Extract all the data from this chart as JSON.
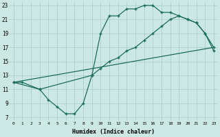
{
  "xlabel": "Humidex (Indice chaleur)",
  "bg_color": "#cce8e4",
  "grid_color": "#aacfcb",
  "line_color": "#1a6b5a",
  "xlim": [
    -0.5,
    23.5
  ],
  "ylim": [
    6.5,
    23.5
  ],
  "xticks": [
    0,
    1,
    2,
    3,
    4,
    5,
    6,
    7,
    8,
    9,
    10,
    11,
    12,
    13,
    14,
    15,
    16,
    17,
    18,
    19,
    20,
    21,
    22,
    23
  ],
  "yticks": [
    7,
    9,
    11,
    13,
    15,
    17,
    19,
    21,
    23
  ],
  "line1_x": [
    0,
    1,
    3,
    4,
    5,
    6,
    7,
    8,
    9,
    10,
    11,
    12,
    13,
    14,
    15,
    16,
    17,
    18,
    19,
    20,
    21,
    22,
    23
  ],
  "line1_y": [
    12,
    12,
    11,
    9.5,
    8.5,
    7.5,
    7.5,
    9,
    13,
    19,
    21.5,
    21.5,
    22.5,
    22.5,
    23,
    23,
    22,
    22,
    21.5,
    21,
    20.5,
    19,
    16.5
  ],
  "line2_x": [
    0,
    3,
    9,
    10,
    11,
    12,
    13,
    14,
    15,
    16,
    17,
    18,
    19,
    20,
    21,
    22,
    23
  ],
  "line2_y": [
    12,
    11,
    13,
    14,
    15,
    15.5,
    16.5,
    17,
    18,
    19,
    20,
    21,
    21.5,
    21,
    20.5,
    19,
    17
  ],
  "line3_x": [
    0,
    23
  ],
  "line3_y": [
    12,
    17
  ]
}
